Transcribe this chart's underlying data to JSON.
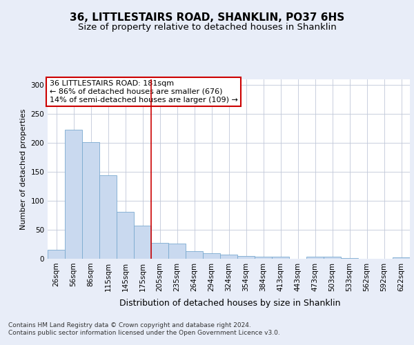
{
  "title": "36, LITTLESTAIRS ROAD, SHANKLIN, PO37 6HS",
  "subtitle": "Size of property relative to detached houses in Shanklin",
  "xlabel": "Distribution of detached houses by size in Shanklin",
  "ylabel": "Number of detached properties",
  "footer": "Contains HM Land Registry data © Crown copyright and database right 2024.\nContains public sector information licensed under the Open Government Licence v3.0.",
  "bin_labels": [
    "26sqm",
    "56sqm",
    "86sqm",
    "115sqm",
    "145sqm",
    "175sqm",
    "205sqm",
    "235sqm",
    "264sqm",
    "294sqm",
    "324sqm",
    "354sqm",
    "384sqm",
    "413sqm",
    "443sqm",
    "473sqm",
    "503sqm",
    "533sqm",
    "562sqm",
    "592sqm",
    "622sqm"
  ],
  "bar_values": [
    15,
    223,
    202,
    144,
    81,
    57,
    28,
    26,
    13,
    10,
    7,
    5,
    4,
    4,
    0,
    4,
    4,
    1,
    0,
    0,
    2
  ],
  "bar_color": "#c9d9ef",
  "bar_edge_color": "#7aaad0",
  "vline_x": 5.5,
  "vline_color": "#cc0000",
  "annotation_text": "36 LITTLESTAIRS ROAD: 181sqm\n← 86% of detached houses are smaller (676)\n14% of semi-detached houses are larger (109) →",
  "annotation_box_color": "white",
  "annotation_box_edge_color": "#cc0000",
  "ylim": [
    0,
    310
  ],
  "yticks": [
    0,
    50,
    100,
    150,
    200,
    250,
    300
  ],
  "background_color": "#e8edf8",
  "plot_background_color": "white",
  "grid_color": "#c0c8d8",
  "title_fontsize": 11,
  "subtitle_fontsize": 9.5,
  "xlabel_fontsize": 9,
  "ylabel_fontsize": 8,
  "tick_fontsize": 7.5,
  "annotation_fontsize": 8,
  "footer_fontsize": 6.5
}
